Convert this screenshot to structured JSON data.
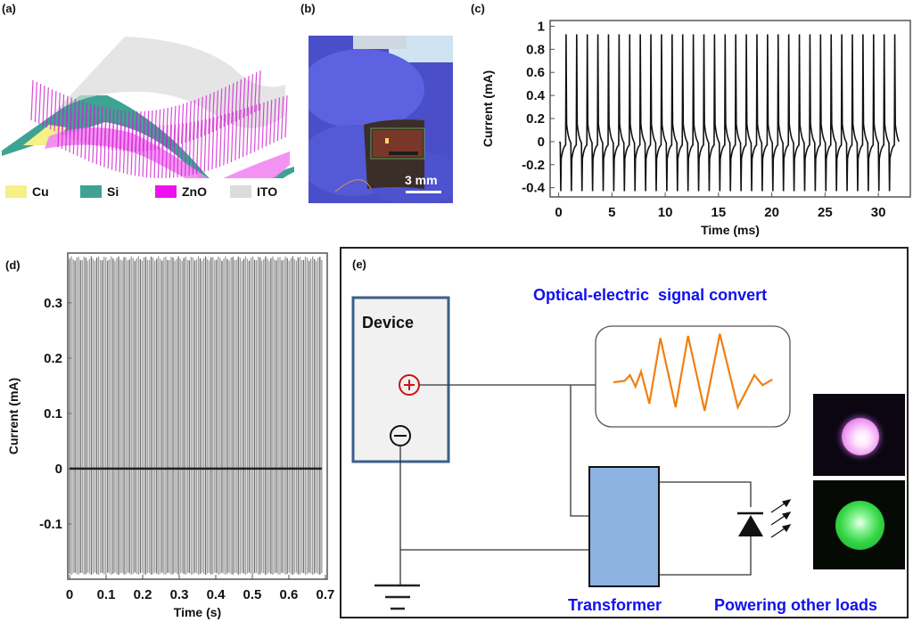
{
  "panels": {
    "a": {
      "label": "(a)",
      "legend": [
        {
          "name": "Cu",
          "color": "#f4f08a"
        },
        {
          "name": "Si",
          "color": "#3ea392"
        },
        {
          "name": "ZnO",
          "color": "#ee11ee"
        },
        {
          "name": "ITO",
          "color": "#dcdcdc"
        }
      ]
    },
    "b": {
      "label": "(b)",
      "scale_bar": "3 mm"
    },
    "c": {
      "label": "(c)"
    },
    "d": {
      "label": "(d)"
    },
    "e": {
      "label": "(e)",
      "device_label": "Device",
      "signal_title": "Optical-electric  signal convert",
      "transformer_label": "Transformer",
      "loads_label": "Powering other loads",
      "plus_symbol": "+",
      "minus_symbol": "−",
      "colors": {
        "title_blue": "#1010ee",
        "device_border": "#3b5f8a",
        "device_fill": "#f1f1f1",
        "transformer_fill": "#8db3e2",
        "signal_orange": "#f07f12",
        "plus_red": "#cc1111"
      },
      "led_photos": [
        {
          "name": "pink-led",
          "glow": "#f2a6f4"
        },
        {
          "name": "green-led",
          "glow": "#36d64a"
        }
      ]
    }
  },
  "chart_data": [
    {
      "id": "c",
      "type": "line",
      "title": "",
      "xlabel": "Time (ms)",
      "ylabel": "Current (mA)",
      "xlim": [
        -0.8,
        33
      ],
      "ylim": [
        -0.48,
        1.05
      ],
      "xticks": [
        0,
        5,
        10,
        15,
        20,
        25,
        30
      ],
      "xtick_labels": [
        "0",
        "5",
        "10",
        "15",
        "20",
        "25",
        "30"
      ],
      "yticks": [
        -0.4,
        -0.2,
        0,
        0.2,
        0.4,
        0.6,
        0.8,
        1
      ],
      "ytick_labels": [
        "-0.4",
        "-0.2",
        "0",
        "0.2",
        "0.4",
        "0.6",
        "0.8",
        "1"
      ],
      "grid": false,
      "series": [
        {
          "name": "pulse train",
          "period_ms": 0.995,
          "first_negative_peak_ms": 0.2,
          "pulse_count": 32,
          "positive_peak_mA": 0.93,
          "negative_peak_mA": -0.43,
          "baseline_mA": 0
        }
      ]
    },
    {
      "id": "d",
      "type": "line",
      "title": "",
      "xlabel": "Time (s)",
      "ylabel": "Current (mA)",
      "xlim": [
        -0.005,
        0.705
      ],
      "ylim": [
        -0.2,
        0.39
      ],
      "xticks": [
        0,
        0.1,
        0.2,
        0.3,
        0.4,
        0.5,
        0.6,
        0.7
      ],
      "xtick_labels": [
        "0",
        "0.1",
        "0.2",
        "0.3",
        "0.4",
        "0.5",
        "0.6",
        "0.7"
      ],
      "yticks": [
        -0.1,
        0,
        0.1,
        0.2,
        0.3
      ],
      "ytick_labels": [
        "-0.1",
        "0",
        "0.1",
        "0.2",
        "0.3"
      ],
      "grid": false,
      "series": [
        {
          "name": "dense pulse train",
          "t_start_s": 0,
          "t_end_s": 0.69,
          "positive_peak_mA": 0.38,
          "negative_peak_mA": -0.19,
          "baseline_mA": 0,
          "approx_pulse_count": 140
        }
      ]
    }
  ]
}
